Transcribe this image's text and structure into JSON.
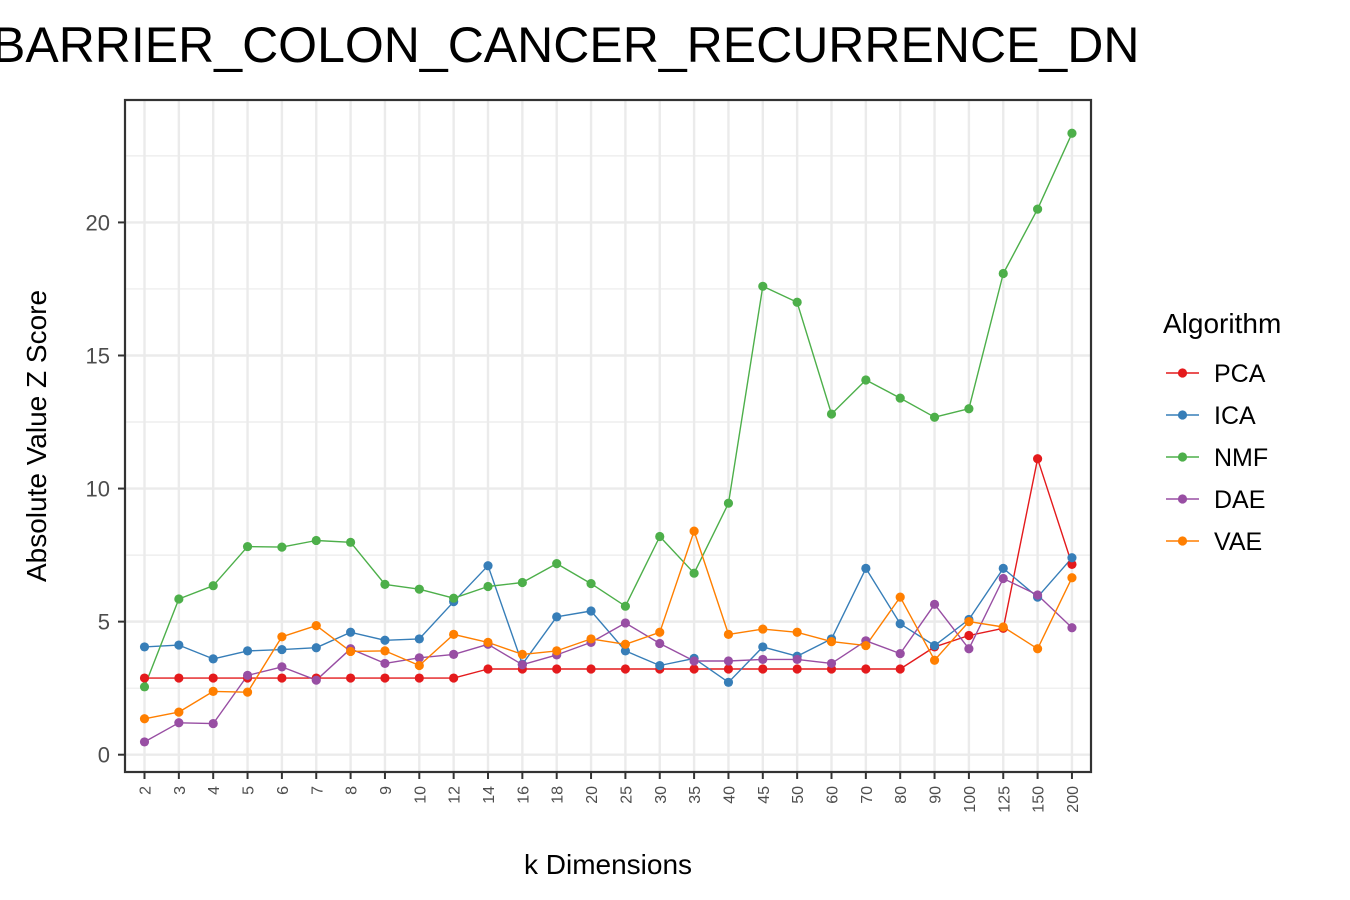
{
  "chart_data": {
    "type": "line",
    "title": "BARRIER_COLON_CANCER_RECURRENCE_DN",
    "xlabel": "k Dimensions",
    "ylabel": "Absolute Value Z Score",
    "categories": [
      "2",
      "3",
      "4",
      "5",
      "6",
      "7",
      "8",
      "9",
      "10",
      "12",
      "14",
      "16",
      "18",
      "20",
      "25",
      "30",
      "35",
      "40",
      "45",
      "50",
      "60",
      "70",
      "80",
      "90",
      "100",
      "125",
      "150",
      "200"
    ],
    "y_ticks": [
      0,
      5,
      10,
      15,
      20
    ],
    "ylim": [
      -0.65,
      24.6
    ],
    "grid": true,
    "legend": {
      "title": "Algorithm",
      "position": "right"
    },
    "series": [
      {
        "name": "PCA",
        "color": "#E41A1C",
        "values": [
          2.88,
          2.88,
          2.88,
          2.88,
          2.88,
          2.88,
          2.88,
          2.88,
          2.88,
          2.88,
          3.22,
          3.22,
          3.22,
          3.22,
          3.22,
          3.22,
          3.22,
          3.22,
          3.22,
          3.22,
          3.22,
          3.22,
          3.22,
          4.05,
          4.48,
          4.75,
          11.12,
          7.15
        ]
      },
      {
        "name": "ICA",
        "color": "#377EB8",
        "values": [
          4.05,
          4.12,
          3.6,
          3.9,
          3.95,
          4.02,
          4.6,
          4.3,
          4.35,
          5.75,
          7.1,
          3.4,
          5.18,
          5.4,
          3.9,
          3.35,
          3.62,
          2.72,
          4.05,
          3.7,
          4.35,
          7.0,
          4.92,
          4.1,
          5.08,
          7.0,
          5.92,
          7.4
        ]
      },
      {
        "name": "NMF",
        "color": "#4DAF4A",
        "values": [
          2.55,
          5.85,
          6.35,
          7.82,
          7.8,
          8.05,
          7.98,
          6.4,
          6.22,
          5.88,
          6.32,
          6.47,
          7.18,
          6.43,
          5.58,
          8.2,
          6.82,
          9.45,
          17.6,
          17.0,
          12.8,
          14.08,
          13.4,
          12.68,
          13.0,
          18.08,
          20.5,
          23.35
        ]
      },
      {
        "name": "DAE",
        "color": "#984EA3",
        "values": [
          0.48,
          1.2,
          1.17,
          2.98,
          3.3,
          2.8,
          3.98,
          3.43,
          3.64,
          3.77,
          4.15,
          3.38,
          3.75,
          4.22,
          4.95,
          4.18,
          3.52,
          3.52,
          3.58,
          3.58,
          3.43,
          4.28,
          3.8,
          5.65,
          3.98,
          6.62,
          6.0,
          4.77
        ]
      },
      {
        "name": "VAE",
        "color": "#FF7F00",
        "values": [
          1.35,
          1.6,
          2.38,
          2.35,
          4.43,
          4.85,
          3.88,
          3.9,
          3.35,
          4.52,
          4.22,
          3.77,
          3.9,
          4.35,
          4.15,
          4.6,
          8.4,
          4.52,
          4.72,
          4.6,
          4.25,
          4.1,
          5.92,
          3.55,
          5.0,
          4.8,
          3.98,
          6.65
        ]
      }
    ]
  }
}
